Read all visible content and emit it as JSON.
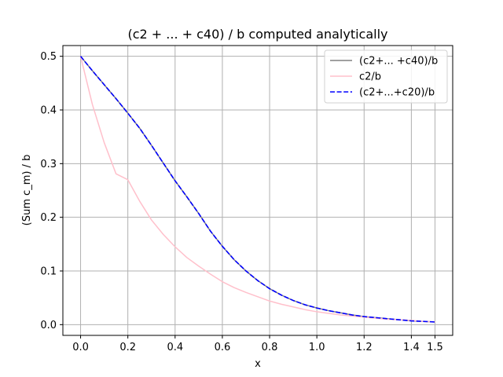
{
  "chart_data": {
    "type": "line",
    "title": "(c2 + ... + c40) / b computed analytically",
    "xlabel": "x",
    "ylabel": "(Sum c_m) / b",
    "xlim": [
      -0.075,
      1.575
    ],
    "ylim": [
      -0.02,
      0.52
    ],
    "xticks": [
      0.0,
      0.2,
      0.4,
      0.6,
      0.8,
      1.0,
      1.2,
      1.4,
      1.5
    ],
    "xtick_labels": [
      "0.0",
      "0.2",
      "0.4",
      "0.6",
      "0.8",
      "1.0",
      "1.2",
      "1.4",
      "1.5"
    ],
    "yticks": [
      0.0,
      0.1,
      0.2,
      0.3,
      0.4,
      0.5
    ],
    "ytick_labels": [
      "0.0",
      "0.1",
      "0.2",
      "0.3",
      "0.4",
      "0.5"
    ],
    "grid": true,
    "legend_position": "top-right",
    "x": [
      0.0,
      0.05,
      0.1,
      0.15,
      0.2,
      0.25,
      0.3,
      0.35,
      0.4,
      0.45,
      0.5,
      0.55,
      0.6,
      0.65,
      0.7,
      0.75,
      0.8,
      0.85,
      0.9,
      0.95,
      1.0,
      1.05,
      1.1,
      1.15,
      1.2,
      1.25,
      1.3,
      1.35,
      1.4,
      1.45,
      1.5
    ],
    "series": [
      {
        "name": "(c2+... +c40)/b",
        "color": "#808080",
        "style": "solid",
        "values": [
          0.5,
          0.473,
          0.447,
          0.421,
          0.394,
          0.366,
          0.334,
          0.301,
          0.268,
          0.238,
          0.207,
          0.174,
          0.146,
          0.121,
          0.1,
          0.082,
          0.067,
          0.055,
          0.045,
          0.037,
          0.031,
          0.026,
          0.022,
          0.018,
          0.015,
          0.013,
          0.011,
          0.009,
          0.007,
          0.006,
          0.005
        ]
      },
      {
        "name": "c2/b",
        "color": "#ffc0cb",
        "style": "solid",
        "values": [
          0.5,
          0.41,
          0.339,
          0.281,
          0.27,
          0.23,
          0.195,
          0.168,
          0.145,
          0.125,
          0.109,
          0.094,
          0.08,
          0.069,
          0.06,
          0.052,
          0.044,
          0.038,
          0.033,
          0.028,
          0.024,
          0.021,
          0.018,
          0.016,
          0.014,
          0.012,
          0.01,
          0.009,
          0.008,
          0.006,
          0.005
        ]
      },
      {
        "name": "(c2+...+c20)/b",
        "color": "#0000ff",
        "style": "dashed",
        "values": [
          0.5,
          0.473,
          0.447,
          0.421,
          0.394,
          0.366,
          0.334,
          0.301,
          0.268,
          0.238,
          0.207,
          0.174,
          0.146,
          0.121,
          0.1,
          0.082,
          0.067,
          0.055,
          0.045,
          0.037,
          0.031,
          0.026,
          0.022,
          0.018,
          0.015,
          0.013,
          0.011,
          0.009,
          0.007,
          0.006,
          0.005
        ]
      }
    ]
  }
}
